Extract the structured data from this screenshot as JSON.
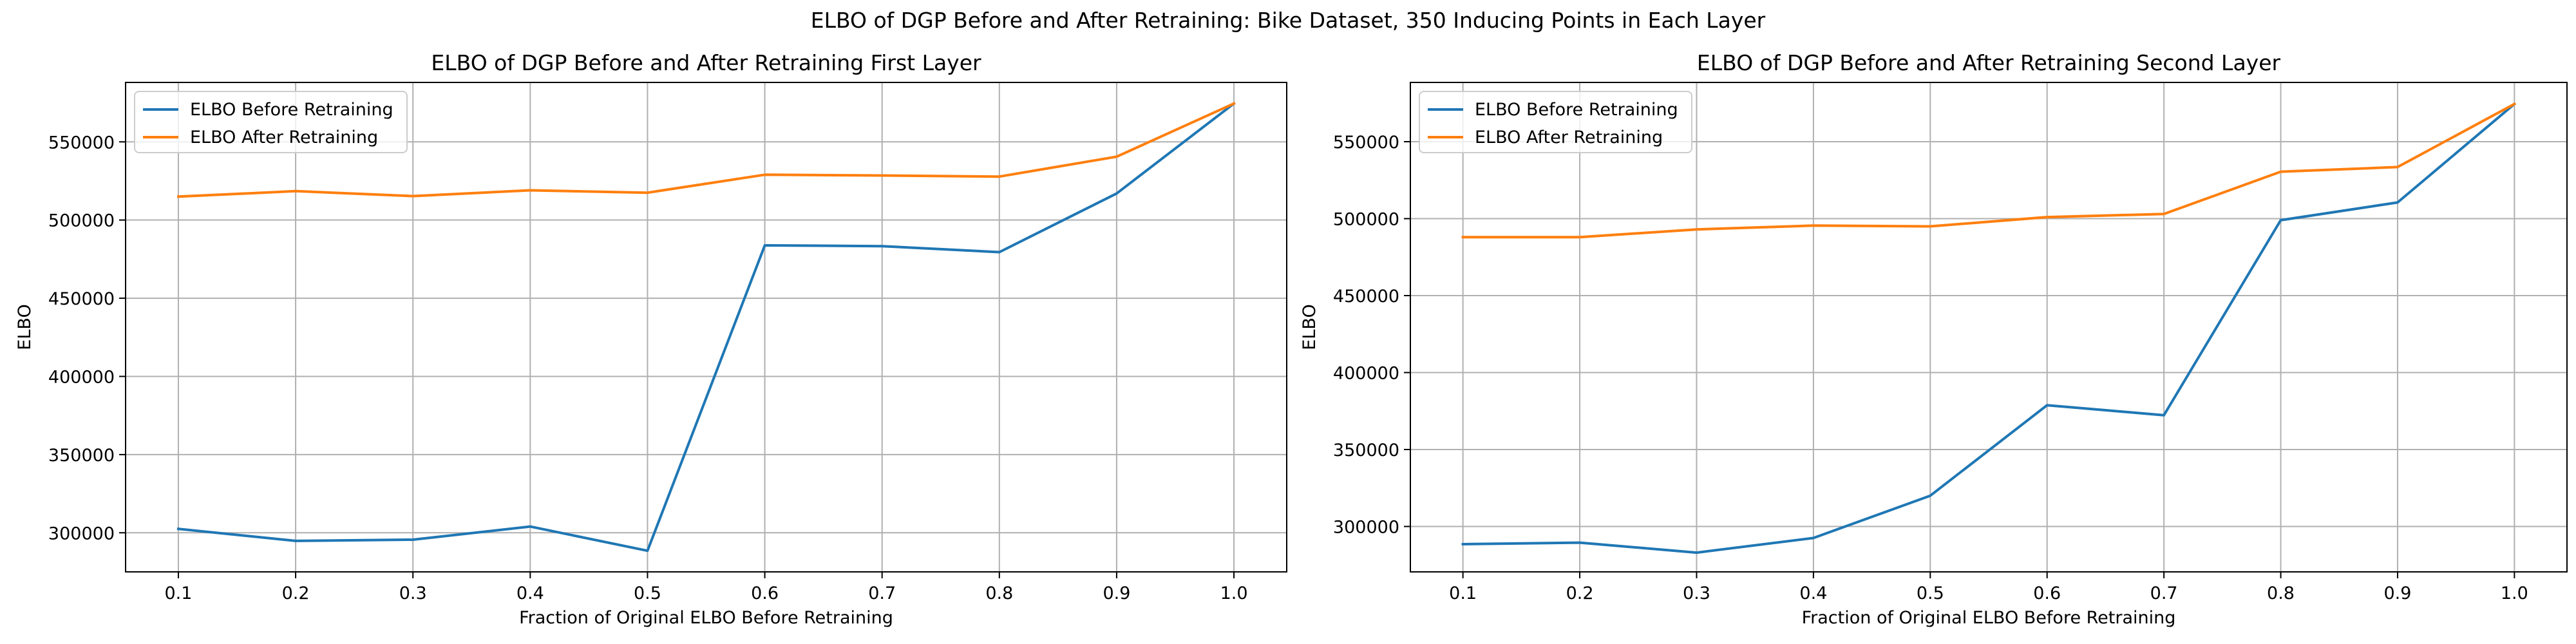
{
  "figure": {
    "suptitle": "ELBO of DGP Before and After Retraining: Bike Dataset, 350 Inducing Points in Each Layer"
  },
  "colors": {
    "series_before": "#1f77b4",
    "series_after": "#ff7f0e",
    "grid": "#b0b0b0",
    "axes": "#000000"
  },
  "chart_data": [
    {
      "type": "line",
      "title": "ELBO of DGP Before and After Retraining First Layer",
      "xlabel": "Fraction of Original ELBO Before Retraining",
      "ylabel": "ELBO",
      "x": [
        0.1,
        0.2,
        0.3,
        0.4,
        0.5,
        0.6,
        0.7,
        0.8,
        0.9,
        1.0
      ],
      "xticks": [
        "0.1",
        "0.2",
        "0.3",
        "0.4",
        "0.5",
        "0.6",
        "0.7",
        "0.8",
        "0.9",
        "1.0"
      ],
      "xlim": [
        0.055,
        1.045
      ],
      "yticks": [
        300000,
        350000,
        400000,
        450000,
        500000,
        550000
      ],
      "ylim": [
        275000,
        588000
      ],
      "grid": true,
      "legend_position": "upper left",
      "series": [
        {
          "name": "ELBO Before Retraining",
          "color": "#1f77b4",
          "values": [
            302500,
            294800,
            295600,
            304000,
            288500,
            483800,
            483300,
            479500,
            517000,
            574500
          ]
        },
        {
          "name": "ELBO After Retraining",
          "color": "#ff7f0e",
          "values": [
            515000,
            518500,
            515300,
            519000,
            517500,
            529000,
            528500,
            527800,
            540500,
            574500
          ]
        }
      ]
    },
    {
      "type": "line",
      "title": "ELBO of DGP Before and After Retraining Second Layer",
      "xlabel": "Fraction of Original ELBO Before Retraining",
      "ylabel": "ELBO",
      "x": [
        0.1,
        0.2,
        0.3,
        0.4,
        0.5,
        0.6,
        0.7,
        0.8,
        0.9,
        1.0
      ],
      "xticks": [
        "0.1",
        "0.2",
        "0.3",
        "0.4",
        "0.5",
        "0.6",
        "0.7",
        "0.8",
        "0.9",
        "1.0"
      ],
      "xlim": [
        0.055,
        1.045
      ],
      "yticks": [
        300000,
        350000,
        400000,
        450000,
        500000,
        550000
      ],
      "ylim": [
        270500,
        588500
      ],
      "grid": true,
      "legend_position": "upper left",
      "series": [
        {
          "name": "ELBO Before Retraining",
          "color": "#1f77b4",
          "values": [
            288500,
            289500,
            283000,
            292500,
            320000,
            378800,
            372300,
            499000,
            510500,
            574500
          ]
        },
        {
          "name": "ELBO After Retraining",
          "color": "#ff7f0e",
          "values": [
            488000,
            488000,
            493000,
            495500,
            495000,
            501000,
            503000,
            530500,
            533500,
            574500
          ]
        }
      ]
    }
  ]
}
